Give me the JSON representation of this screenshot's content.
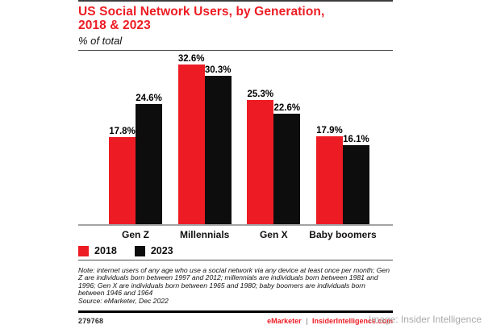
{
  "page": {
    "watermark": "Image: Insider Intelligence"
  },
  "chart": {
    "title": "US Social Network Users, by Generation,\n2018 & 2023",
    "subtitle": "% of total",
    "note": "Note: internet users of any age who use a social network via any device at least once per month; Gen Z are individuals born between 1997 and 2012; millennials are individuals born between 1981 and 1996; Gen X are individuals born between 1965 and 1980; baby boomers are individuals born between 1946 and 1964",
    "source": "Source: eMarketer, Dec 2022",
    "footer_id": "279768",
    "brand_left": "eMarketer",
    "brand_separator": "|",
    "brand_right": "InsiderIntelligence.com"
  },
  "chart_data": {
    "type": "bar",
    "title": "US Social Network Users, by Generation, 2018 & 2023",
    "subtitle": "% of total",
    "categories": [
      "Gen Z",
      "Millennials",
      "Gen X",
      "Baby boomers"
    ],
    "series": [
      {
        "name": "2018",
        "color": "#ED1C24",
        "values": [
          17.8,
          32.6,
          25.3,
          17.9
        ]
      },
      {
        "name": "2023",
        "color": "#0d0d0d",
        "values": [
          24.6,
          30.3,
          22.6,
          16.1
        ]
      }
    ],
    "value_suffix": "%",
    "ylim": [
      0,
      35
    ],
    "grid": false,
    "legend_position": "bottom-left",
    "value_labels": "above-bars"
  },
  "colors": {
    "accent_red": "#ED1C24",
    "bar_black": "#0d0d0d",
    "axis_gray": "#a3a3a3"
  }
}
